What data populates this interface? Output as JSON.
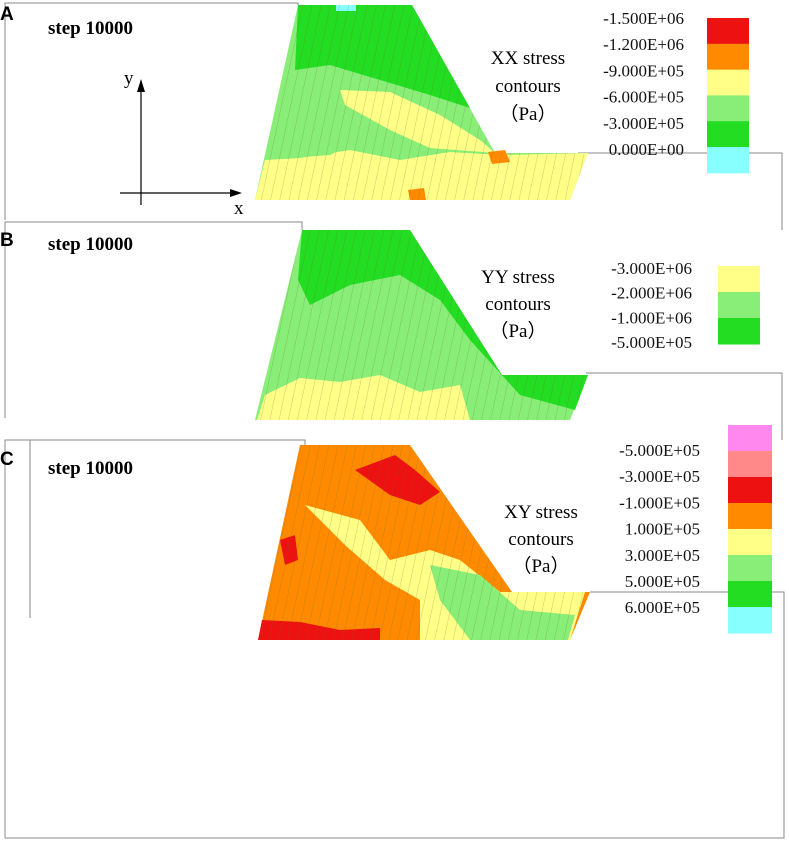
{
  "panels": [
    {
      "letter": "A",
      "step_label": "step 10000",
      "title_line1": "XX stress",
      "title_line2": "contours",
      "title_line3": "（Pa）",
      "legend_values": [
        "-1.500E+06",
        "-1.200E+06",
        "-9.000E+05",
        "-6.000E+05",
        "-3.000E+05",
        "0.000E+00"
      ],
      "legend_colors": [
        "#ee1111",
        "#ff8a00",
        "#ffff88",
        "#88ee77",
        "#22dd22",
        "#88ffff"
      ]
    },
    {
      "letter": "B",
      "step_label": "step 10000",
      "title_line1": "YY stress",
      "title_line2": "contours",
      "title_line3": "（Pa）",
      "legend_values": [
        "-3.000E+06",
        "-2.000E+06",
        "-1.000E+06",
        "-5.000E+05"
      ],
      "legend_colors": [
        "#ffff88",
        "#88ee77",
        "#22dd22"
      ]
    },
    {
      "letter": "C",
      "step_label": "step 10000",
      "title_line1": "XY stress",
      "title_line2": "contours",
      "title_line3": "（Pa）",
      "legend_values": [
        "-5.000E+05",
        "-3.000E+05",
        "-1.000E+05",
        "1.000E+05",
        "3.000E+05",
        "5.000E+05",
        "6.000E+05"
      ],
      "legend_colors": [
        "#ff88ee",
        "#ff8888",
        "#ee1111",
        "#ff8a00",
        "#ffff88",
        "#88ee77",
        "#22dd22",
        "#88ffff"
      ]
    }
  ],
  "axes": {
    "x_label": "x",
    "y_label": "y"
  }
}
